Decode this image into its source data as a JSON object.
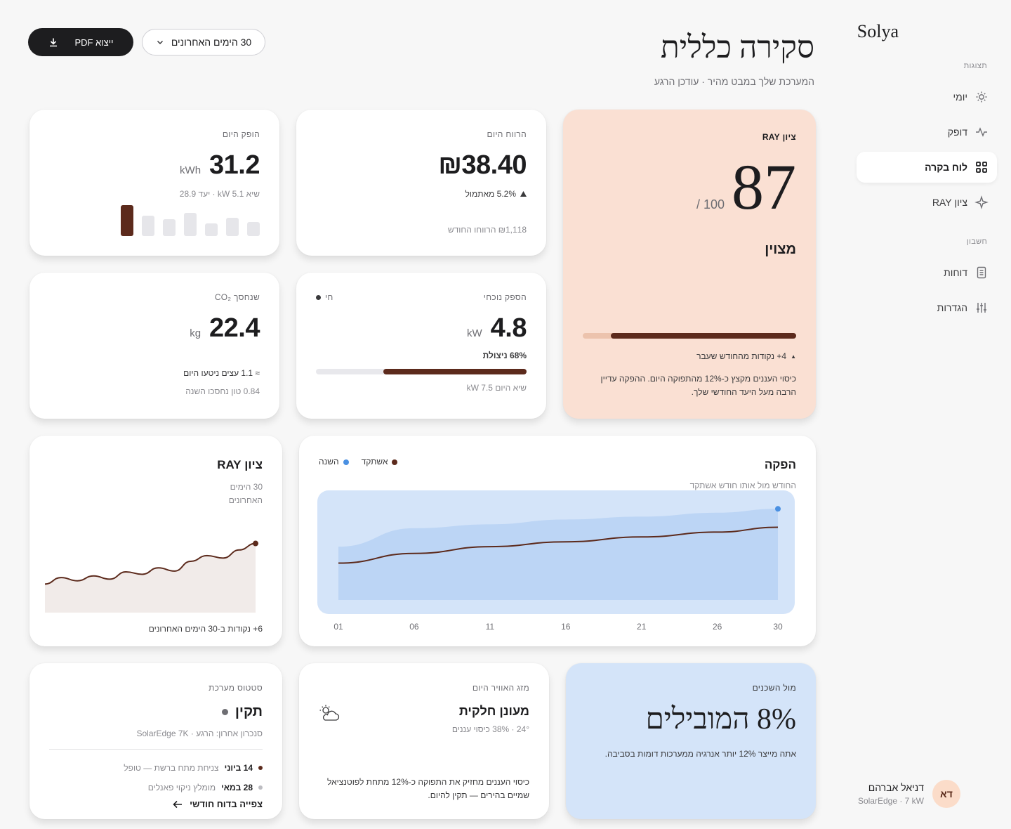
{
  "sidebar": {
    "brand": "Solya",
    "section_views": "תצוגות",
    "section_account": "חשבון",
    "items": [
      {
        "label": "יומי",
        "icon": "sun-icon"
      },
      {
        "label": "דופק",
        "icon": "pulse-icon"
      },
      {
        "label": "לוח בקרה",
        "icon": "grid-icon"
      },
      {
        "label": "ציון RAY",
        "icon": "sparkle-icon"
      },
      {
        "label": "דוחות",
        "icon": "document-icon"
      },
      {
        "label": "הגדרות",
        "icon": "sliders-icon"
      }
    ],
    "user": {
      "initials": "דא",
      "name": "דניאל אברהם",
      "sub": "SolarEdge · 7 kW"
    }
  },
  "header": {
    "title": "סקירה כללית",
    "subtitle": "המערכת שלך במבט מהיר · עודכן הרגע",
    "export_label": "ייצוא PDF",
    "range_label": "30 הימים האחרונים"
  },
  "production": {
    "label": "הופק היום",
    "value": "31.2",
    "unit": "kWh",
    "sub": "שיא 5.1 kW · יעד 28.9",
    "bars": [
      0.45,
      0.6,
      0.4,
      0.75,
      0.55,
      0.65,
      1.0
    ]
  },
  "revenue": {
    "label": "הרווח היום",
    "value": "₪38.40",
    "change": "5.2% מאתמול",
    "month": "₪1,118 הרווחו החודש"
  },
  "ray": {
    "label": "ציון RAY",
    "score": "87",
    "out_of": "/ 100",
    "grade": "מצוין",
    "progress": 0.87,
    "delta": "4+ נקודות מהחודש שעבר",
    "note": "כיסוי העננים מקצץ כ-12% מהתפוקה היום. ההפקה עדיין הרבה מעל היעד החודשי שלך."
  },
  "co2": {
    "label": "שנחסך CO₂",
    "value": "22.4",
    "unit": "kg",
    "trees": "≈ 1.1 עצים ניטעו היום",
    "year": "0.84 טון נחסכו השנה"
  },
  "current": {
    "label": "הספק נוכחי",
    "live": "חי",
    "value": "4.8",
    "unit": "kW",
    "util": "68% ניצולת",
    "util_value": 0.68,
    "peak": "שיא היום 7.5 kW"
  },
  "chart": {
    "title": "הפקה",
    "subtitle": "החודש מול אותו חודש אשתקד",
    "legend_last": "אשתקד",
    "legend_this": "השנה",
    "x_ticks": [
      "01",
      "06",
      "11",
      "16",
      "21",
      "26",
      "30"
    ]
  },
  "chart_data": {
    "type": "area",
    "x": [
      1,
      6,
      11,
      16,
      21,
      26,
      30
    ],
    "series": [
      {
        "name": "השנה",
        "values": [
          0.55,
          0.74,
          0.78,
          0.83,
          0.86,
          0.9,
          0.94
        ]
      },
      {
        "name": "אשתקד",
        "values": [
          0.38,
          0.48,
          0.55,
          0.6,
          0.65,
          0.7,
          0.75
        ]
      }
    ],
    "ylim": [
      0,
      1
    ]
  },
  "raytrend": {
    "title": "ציון RAY",
    "sub": "30 הימים האחרונים",
    "footer": "6+ נקודות ב-30 הימים האחרונים",
    "values": [
      0.3,
      0.38,
      0.34,
      0.4,
      0.36,
      0.45,
      0.42,
      0.5,
      0.46,
      0.58,
      0.65,
      0.62,
      0.72,
      0.8
    ]
  },
  "status": {
    "label": "סטטוס מערכת",
    "state": "תקין",
    "sync": "סנכרון אחרון: הרגע · SolarEdge 7K",
    "events": [
      {
        "date": "14 ביוני",
        "text": "צניחת מתח ברשת — טופל",
        "color": "#5c2a1c"
      },
      {
        "date": "28 במאי",
        "text": "מומלץ ניקוי פאנלים",
        "color": "#bdbdc2"
      }
    ],
    "link": "צפייה בדוח חודשי"
  },
  "weather": {
    "label": "מזג האוויר היום",
    "condition": "מעונן חלקית",
    "details": "24° · 38% כיסוי עננים",
    "note": "כיסוי העננים מחזיק את התפוקה כ-12% מתחת לפוטנציאל שמיים בהירים — תקין להיום."
  },
  "neighbors": {
    "label": "מול השכנים",
    "value": "8% המובילים",
    "note": "אתה מייצר 12% יותר אנרגיה ממערכות דומות בסביבה."
  },
  "colors": {
    "accent": "#5c2a1c",
    "ray_bg": "#fae0d3",
    "neighbors_bg": "#d4e4f9",
    "chart_blue": "#4a90e2"
  }
}
